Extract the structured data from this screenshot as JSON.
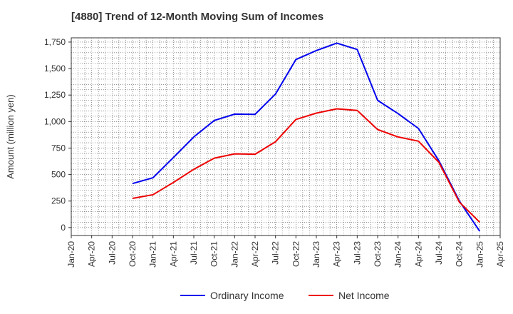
{
  "chart_data": {
    "type": "line",
    "title": "[4880]  Trend of 12-Month Moving Sum of Incomes",
    "ylabel": "Amount (million yen)",
    "xlabel": "",
    "ylim": [
      -75,
      1790
    ],
    "yticks": [
      0,
      250,
      500,
      750,
      1000,
      1250,
      1500,
      1750
    ],
    "ytick_labels": [
      "0",
      "250",
      "500",
      "750",
      "1,000",
      "1,250",
      "1,500",
      "1,750"
    ],
    "xtick_labels": [
      "Jan-20",
      "Apr-20",
      "Jul-20",
      "Oct-20",
      "Jan-21",
      "Apr-21",
      "Jul-21",
      "Oct-21",
      "Jan-22",
      "Apr-22",
      "Jul-22",
      "Oct-22",
      "Jan-23",
      "Apr-23",
      "Jul-23",
      "Oct-23",
      "Jan-24",
      "Apr-24",
      "Jul-24",
      "Oct-24",
      "Jan-25",
      "Apr-25"
    ],
    "x": [
      "Oct-20",
      "Jan-21",
      "Apr-21",
      "Jul-21",
      "Oct-21",
      "Jan-22",
      "Apr-22",
      "Jul-22",
      "Oct-22",
      "Jan-23",
      "Apr-23",
      "Jul-23",
      "Oct-23",
      "Jan-24",
      "Apr-24",
      "Jul-24",
      "Oct-24",
      "Jan-25"
    ],
    "series": [
      {
        "name": "Ordinary Income",
        "color": "#0000ee",
        "values": [
          415,
          470,
          660,
          855,
          1010,
          1070,
          1068,
          1260,
          1585,
          1670,
          1740,
          1680,
          1200,
          1075,
          935,
          630,
          250,
          -35
        ]
      },
      {
        "name": "Net Income",
        "color": "#ee0000",
        "values": [
          275,
          310,
          425,
          550,
          655,
          695,
          692,
          810,
          1020,
          1080,
          1120,
          1105,
          925,
          855,
          815,
          615,
          240,
          50
        ]
      }
    ],
    "grid": true,
    "legend_position": "bottom-center"
  }
}
